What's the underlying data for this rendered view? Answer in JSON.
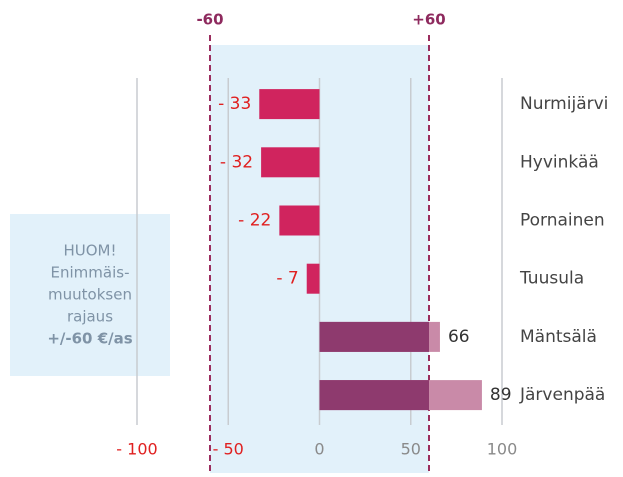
{
  "chart_data": {
    "type": "bar",
    "orientation": "horizontal",
    "categories": [
      "Nurmijärvi",
      "Hyvinkää",
      "Pornainen",
      "Tuusula",
      "Mäntsälä",
      "Järvenpää"
    ],
    "values": [
      -33,
      -32,
      -22,
      -7,
      66,
      89
    ],
    "value_labels": [
      "- 33",
      "- 32",
      "- 22",
      "- 7",
      "66",
      "89"
    ],
    "negative_color": "#d0245e",
    "positive_color": "#c98aa8",
    "capped_color": "#8e3a6e",
    "xlim": [
      -100,
      100
    ],
    "xticks": [
      {
        "value": -100,
        "label": "- 100"
      },
      {
        "value": -50,
        "label": "- 50"
      },
      0,
      50,
      100
    ],
    "grid": true,
    "limits": [
      -60,
      {
        "value": 60,
        "label": "+60"
      }
    ],
    "limit_band_color": "#e2f1fa",
    "note": [
      "HUOM!",
      "Enimmäis-",
      "muutoksen",
      "rajaus",
      "+/-60 €/as"
    ]
  }
}
